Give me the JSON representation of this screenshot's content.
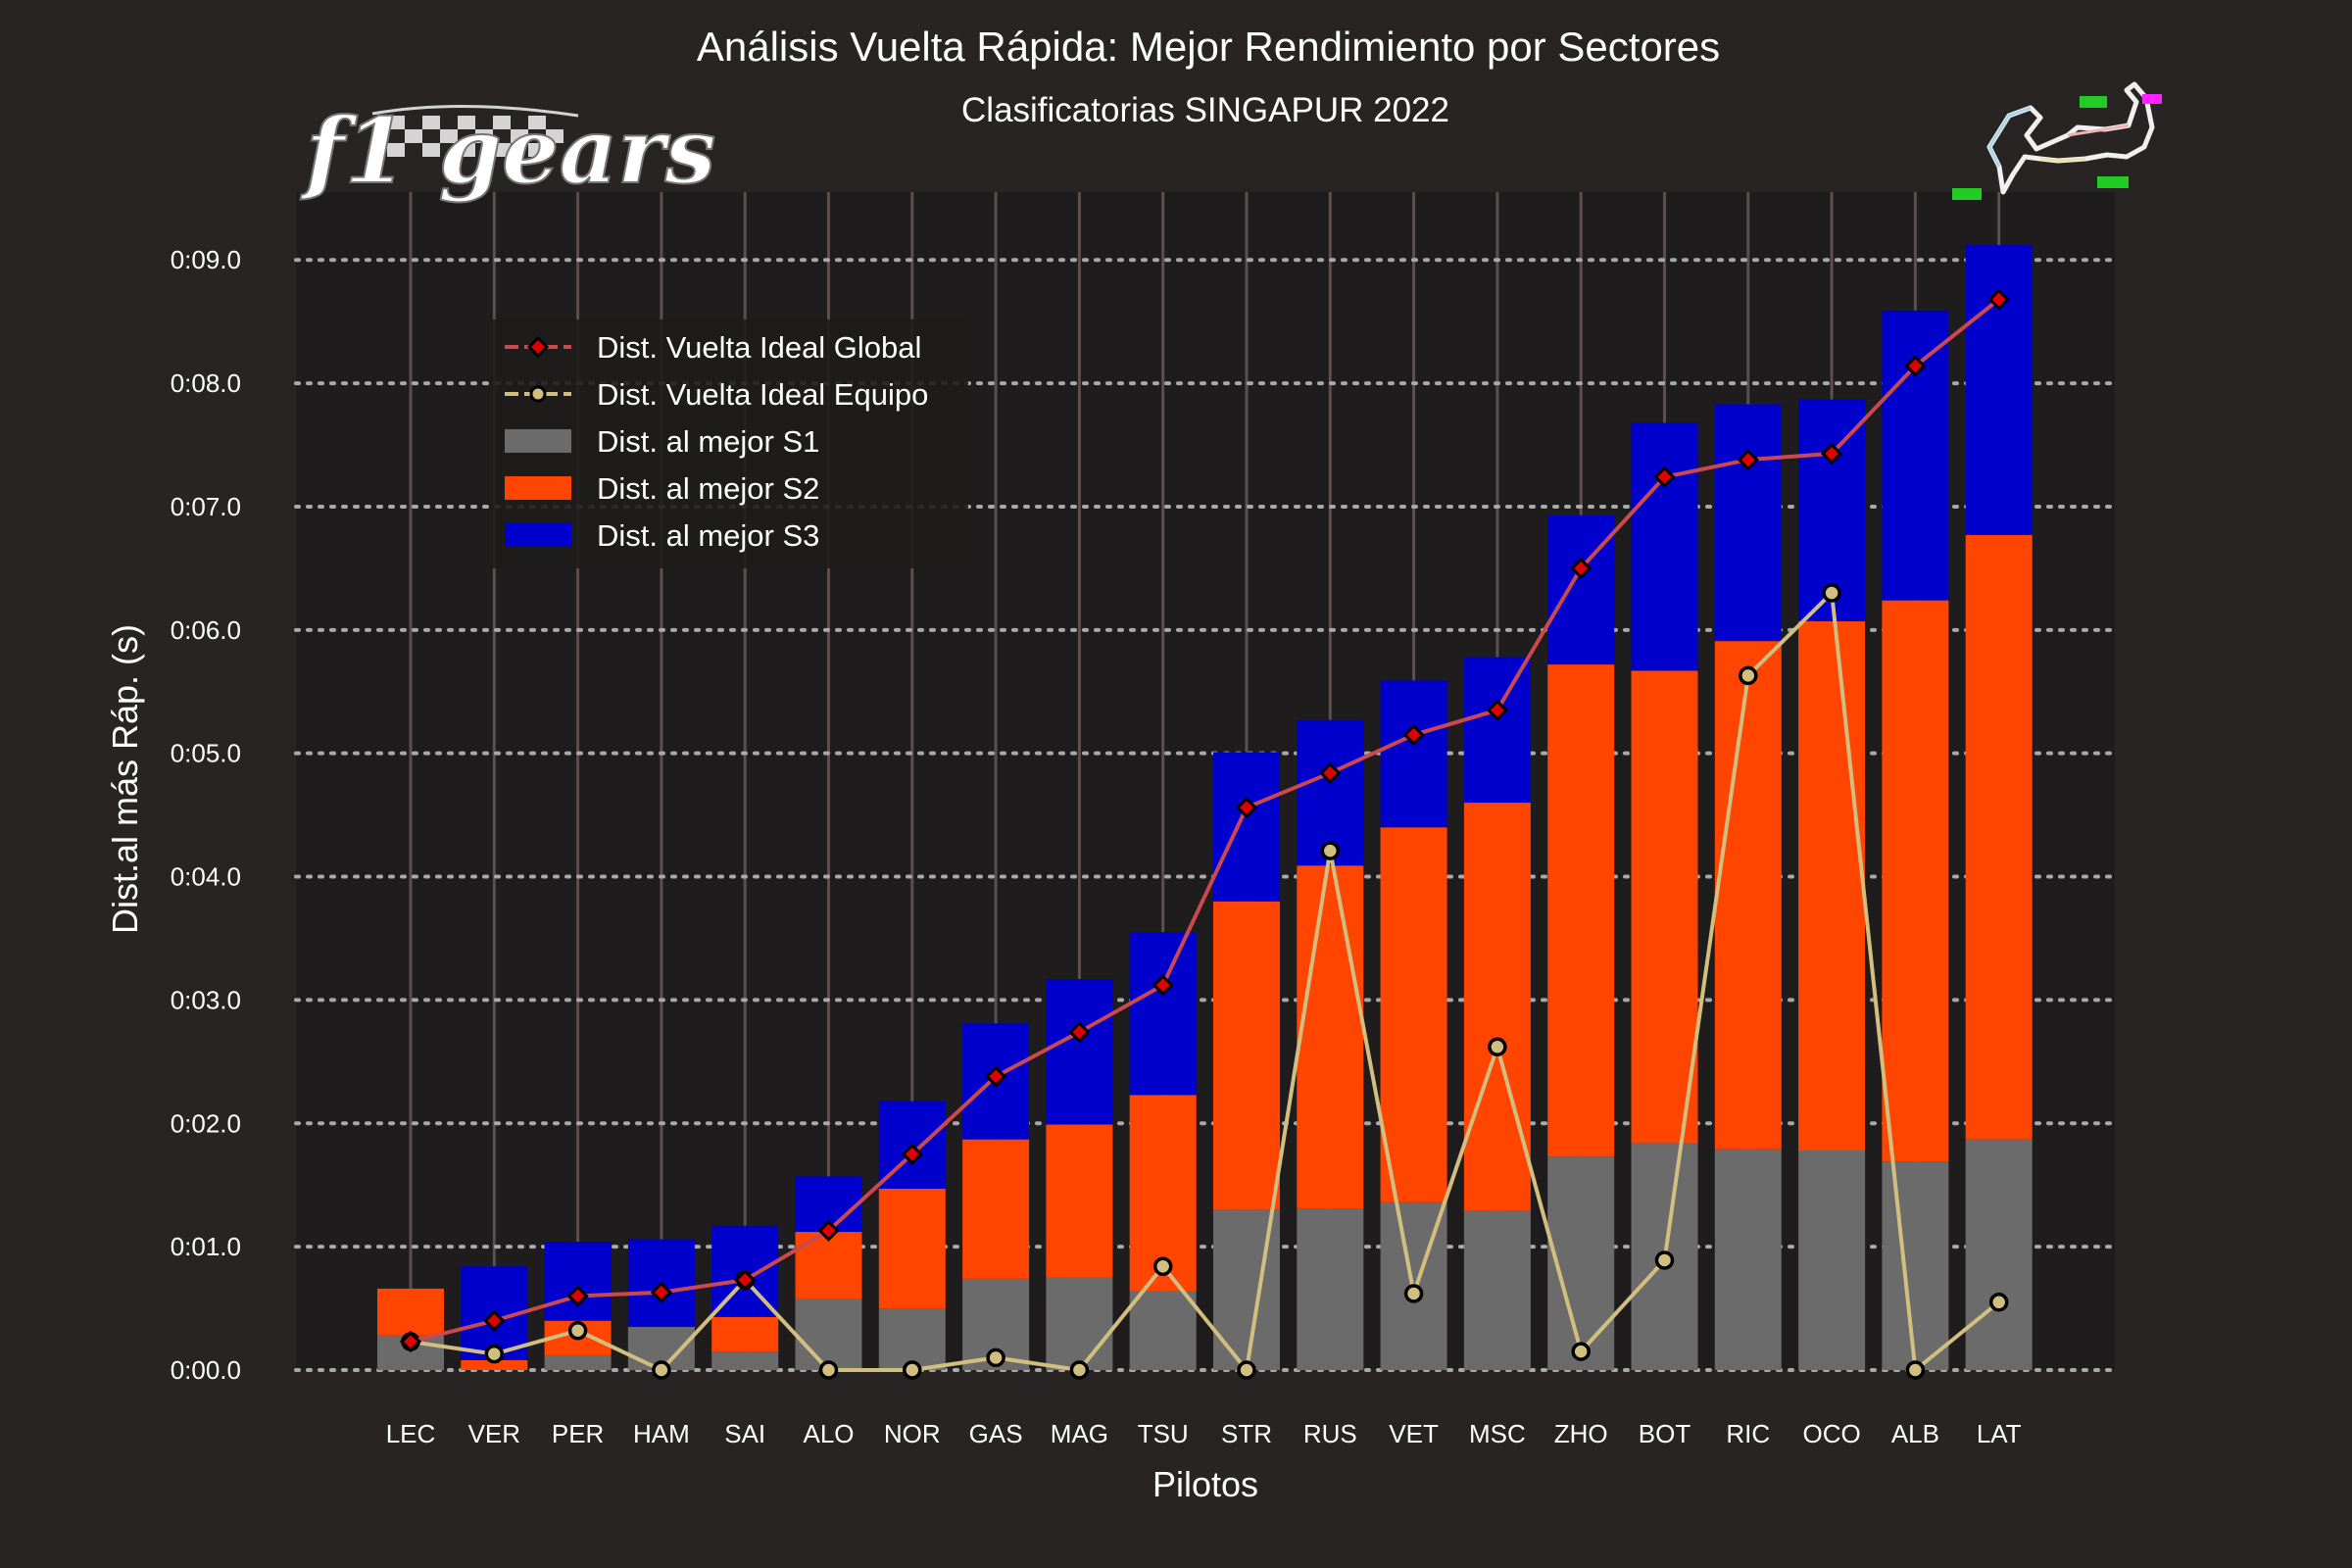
{
  "chart_data": {
    "type": "bar",
    "title": "Análisis Vuelta Rápida: Mejor Rendimiento por Sectores",
    "subtitle": "Clasificatorias SINGAPUR 2022",
    "xlabel": "Pilotos",
    "ylabel": "Dist.al más Ráp. (s)",
    "ylim": [
      0,
      0.0955
    ],
    "yticks": [
      0.0,
      0.01,
      0.02,
      0.03,
      0.04,
      0.05,
      0.06,
      0.07,
      0.08,
      0.09
    ],
    "ytick_labels": [
      "0:00.0",
      "0:01.0",
      "0:02.0",
      "0:03.0",
      "0:04.0",
      "0:05.0",
      "0:06.0",
      "0:07.0",
      "0:08.0",
      "0:09.0"
    ],
    "stacked": true,
    "grid": true,
    "legend_position": "upper-left",
    "categories": [
      "LEC",
      "VER",
      "PER",
      "HAM",
      "SAI",
      "ALO",
      "NOR",
      "GAS",
      "MAG",
      "TSU",
      "STR",
      "RUS",
      "VET",
      "MSC",
      "ZHO",
      "BOT",
      "RIC",
      "OCO",
      "ALB",
      "LAT"
    ],
    "series": [
      {
        "name": "Dist. al mejor S1",
        "kind": "bar",
        "color": "#6b6b6b",
        "values": [
          0.0028,
          0.0,
          0.0012,
          0.0035,
          0.0015,
          0.0058,
          0.005,
          0.0074,
          0.0075,
          0.0064,
          0.013,
          0.0131,
          0.0136,
          0.0129,
          0.0173,
          0.0184,
          0.0179,
          0.0178,
          0.0169,
          0.0187
        ]
      },
      {
        "name": "Dist. al mejor S2",
        "kind": "bar",
        "color": "#ff4500",
        "values": [
          0.0038,
          0.0008,
          0.0028,
          0.0,
          0.0028,
          0.0054,
          0.0097,
          0.0113,
          0.0124,
          0.0159,
          0.025,
          0.0278,
          0.0304,
          0.0331,
          0.0399,
          0.0383,
          0.0412,
          0.0429,
          0.0455,
          0.049
        ]
      },
      {
        "name": "Dist. al mejor S3",
        "kind": "bar",
        "color": "#0000cd",
        "values": [
          0.0,
          0.0076,
          0.0064,
          0.0071,
          0.0074,
          0.0045,
          0.0071,
          0.0094,
          0.0118,
          0.0132,
          0.0121,
          0.0118,
          0.0119,
          0.0118,
          0.0121,
          0.0201,
          0.0192,
          0.018,
          0.0235,
          0.0235
        ]
      },
      {
        "name": "Dist. Vuelta Ideal Global",
        "kind": "line",
        "color": "#c9494f",
        "marker": "diamond",
        "marker_face": "#e00000",
        "values": [
          0.0023,
          0.004,
          0.006,
          0.0063,
          0.0073,
          0.0113,
          0.0175,
          0.0238,
          0.0274,
          0.0312,
          0.0456,
          0.0484,
          0.0515,
          0.0535,
          0.065,
          0.0724,
          0.0738,
          0.0743,
          0.0814,
          0.0868
        ]
      },
      {
        "name": "Dist. Vuelta Ideal Equipo",
        "kind": "line",
        "color": "#d2bf80",
        "marker": "circle",
        "marker_face": "#d2bf80",
        "values": [
          0.0023,
          0.0013,
          0.0032,
          0.0,
          0.0073,
          0.0,
          0.0,
          0.001,
          0.0,
          0.0084,
          0.0,
          0.0421,
          0.0062,
          0.0262,
          0.0015,
          0.0089,
          0.0563,
          0.063,
          0.0,
          0.0055
        ]
      }
    ],
    "legend_order": [
      "Dist. Vuelta Ideal Global",
      "Dist. Vuelta Ideal Equipo",
      "Dist. al mejor S1",
      "Dist. al mejor S2",
      "Dist. al mejor S3"
    ]
  },
  "logo": {
    "text": "f1 gears"
  },
  "colors": {
    "page_background": "#282424",
    "plot_background": "#1e1c1c",
    "grid_major": "#a9a9a9",
    "grid_vertical": "#5a5050",
    "text": "#ffffff"
  }
}
